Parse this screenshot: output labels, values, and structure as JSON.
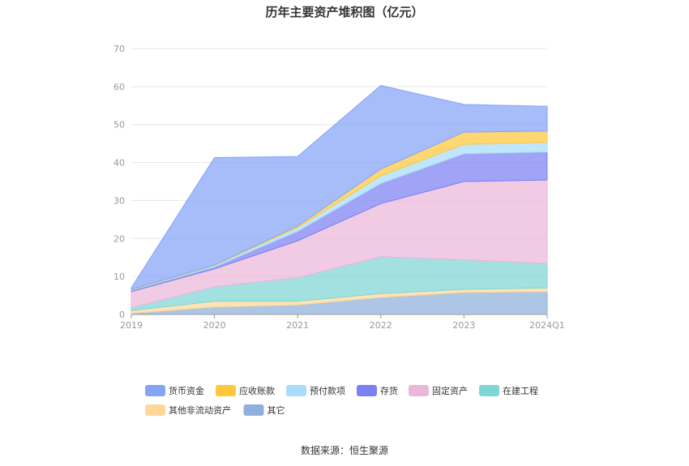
{
  "chart_data": {
    "type": "area",
    "stacked": true,
    "title": "历年主要资产堆积图（亿元）",
    "source": "数据来源：恒生聚源",
    "categories": [
      "2019",
      "2020",
      "2021",
      "2022",
      "2023",
      "2024Q1"
    ],
    "ylim": [
      0,
      70
    ],
    "yticks": [
      0,
      10,
      20,
      30,
      40,
      50,
      60,
      70
    ],
    "grid": true,
    "legend_position": "bottom",
    "series": [
      {
        "name": "其它",
        "color": "#8fb0dc",
        "values": [
          0.3,
          2.0,
          2.5,
          4.5,
          5.8,
          6.0
        ]
      },
      {
        "name": "其他非流动资产",
        "color": "#ffd899",
        "values": [
          0.7,
          1.5,
          1.0,
          1.0,
          0.8,
          1.0
        ]
      },
      {
        "name": "在建工程",
        "color": "#7fd6d6",
        "values": [
          0.8,
          3.8,
          6.2,
          9.7,
          7.8,
          6.4
        ]
      },
      {
        "name": "固定资产",
        "color": "#ebb7d9",
        "values": [
          4.2,
          4.7,
          9.7,
          14.0,
          20.6,
          22.0
        ]
      },
      {
        "name": "存货",
        "color": "#7b80f2",
        "values": [
          0.3,
          0.5,
          2.5,
          5.3,
          7.3,
          7.4
        ]
      },
      {
        "name": "预付款项",
        "color": "#a8dcfa",
        "values": [
          0.2,
          0.4,
          1.0,
          2.0,
          2.5,
          2.5
        ]
      },
      {
        "name": "应收账款",
        "color": "#ffc83c",
        "values": [
          0.1,
          0.1,
          0.4,
          1.8,
          3.2,
          3.0
        ]
      },
      {
        "name": "货币资金",
        "color": "#84a4f8",
        "values": [
          0.4,
          28.3,
          18.3,
          22.0,
          7.3,
          6.5
        ]
      }
    ]
  }
}
